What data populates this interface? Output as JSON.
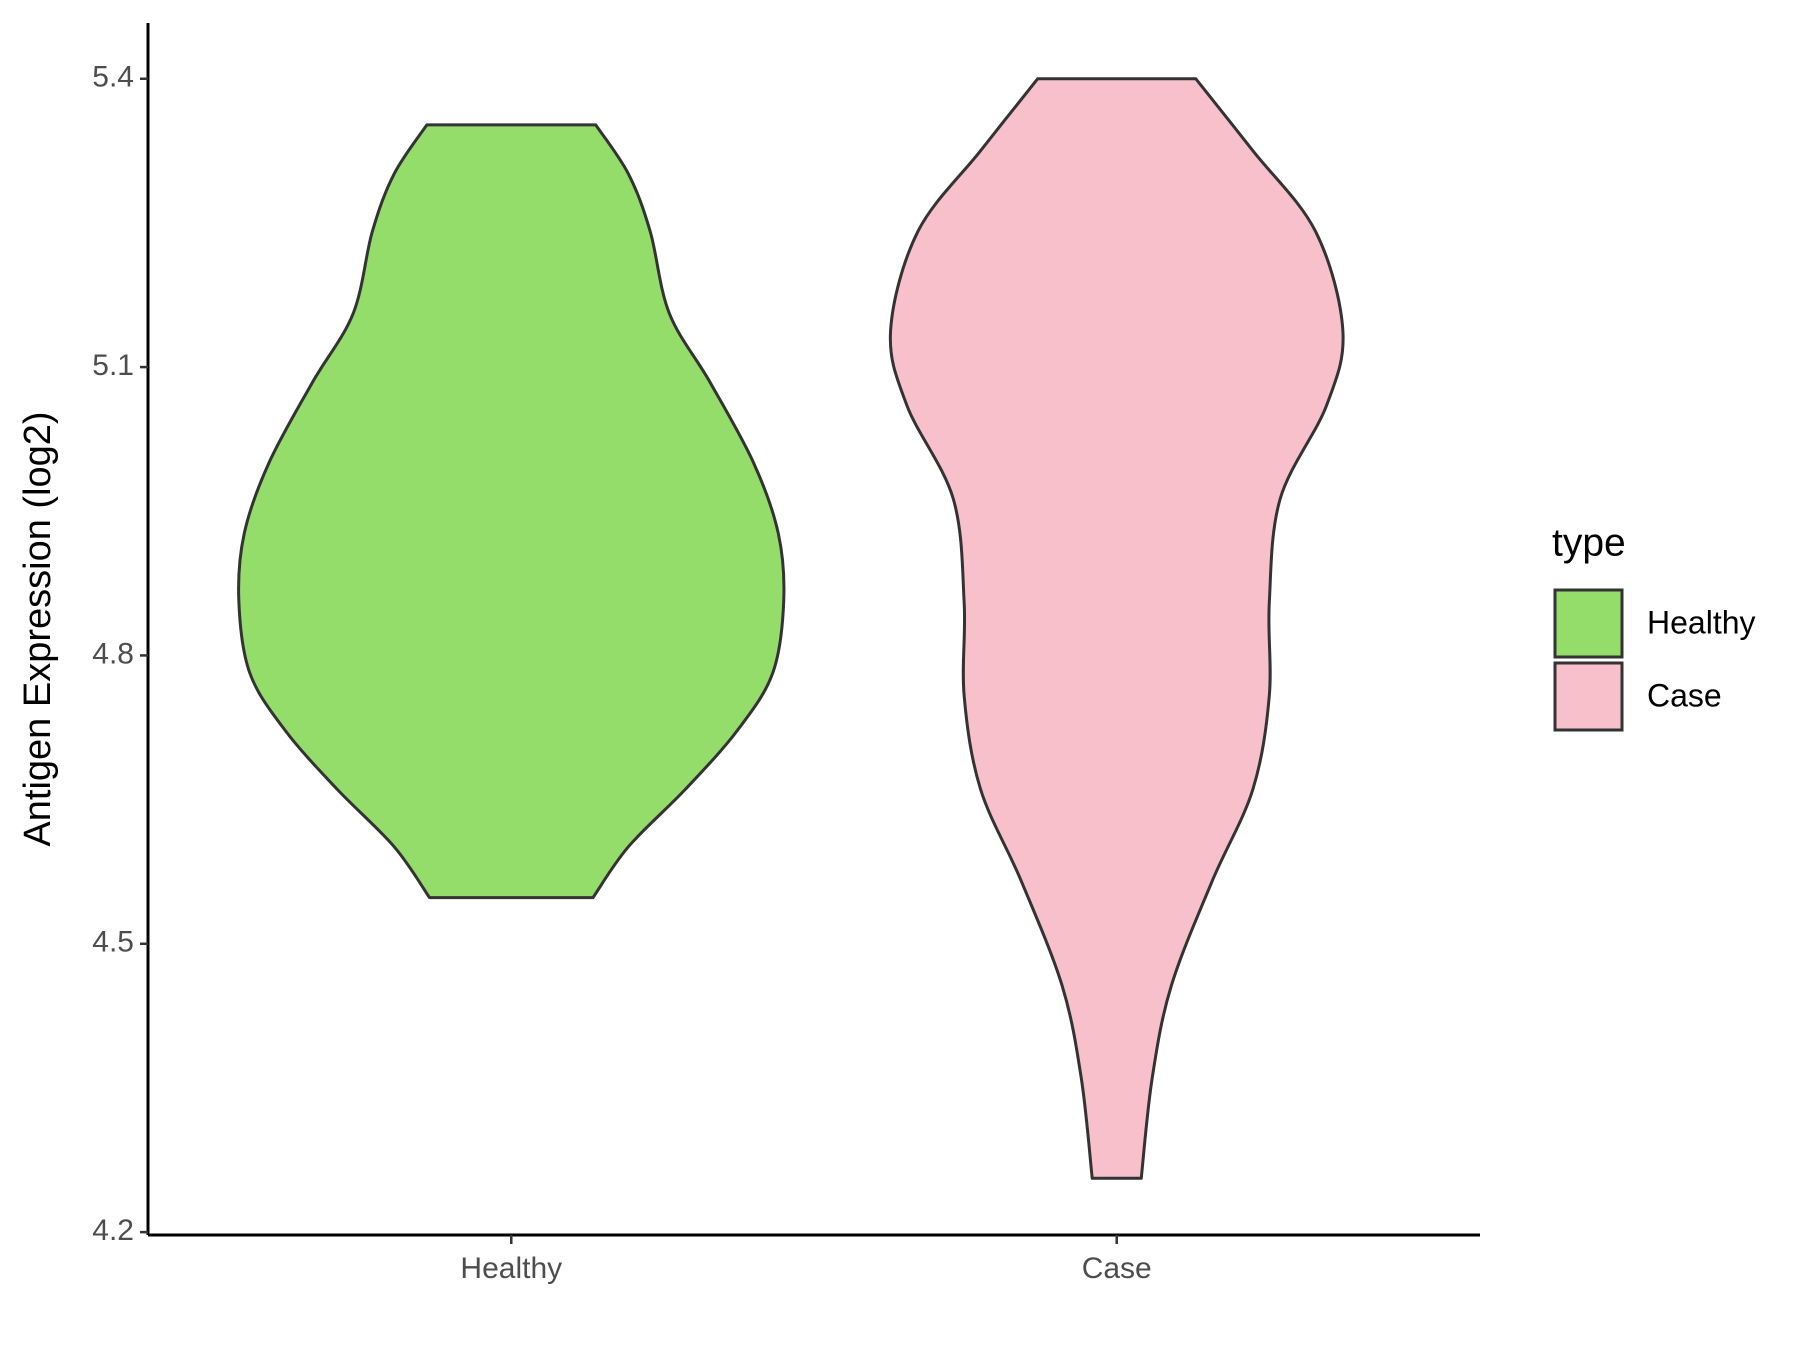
{
  "chart_data": {
    "type": "violin",
    "y_label": "Antigen Expression (log2)",
    "categories": [
      "Healthy",
      "Case"
    ],
    "series": [
      {
        "name": "Healthy",
        "color": "#95dd6b",
        "y": [
          5.352,
          5.301,
          5.241,
          5.156,
          5.084,
          5.0,
          4.927,
          4.857,
          4.782,
          4.722,
          4.661,
          4.601,
          4.548
        ],
        "density": [
          0.31,
          0.43,
          0.51,
          0.58,
          0.73,
          0.89,
          0.98,
          1.0,
          0.96,
          0.83,
          0.64,
          0.43,
          0.3
        ]
      },
      {
        "name": "Case",
        "color": "#f7c0cb",
        "y": [
          5.4,
          5.325,
          5.241,
          5.138,
          5.06,
          4.963,
          4.855,
          4.758,
          4.661,
          4.565,
          4.456,
          4.36,
          4.256
        ],
        "density": [
          0.29,
          0.5,
          0.73,
          0.83,
          0.77,
          0.6,
          0.56,
          0.56,
          0.5,
          0.35,
          0.2,
          0.13,
          0.09
        ]
      }
    ],
    "ylim": [
      4.197,
      5.458
    ],
    "yticks": [
      4.2,
      4.5,
      4.8,
      5.1,
      5.4
    ],
    "legend_title": "type",
    "legend_position": "right"
  }
}
